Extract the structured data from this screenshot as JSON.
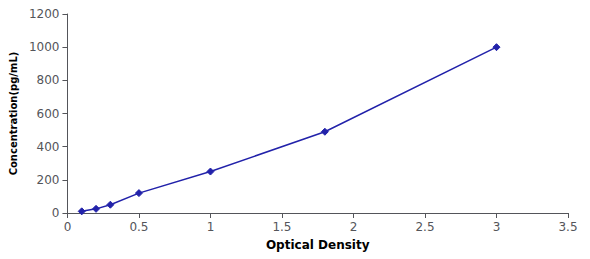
{
  "chart_data": {
    "type": "line",
    "xlabel": "Optical Density",
    "ylabel": "Concentration(pg/mL)",
    "x": [
      0.1,
      0.2,
      0.3,
      0.5,
      1.0,
      1.8,
      3.0
    ],
    "values": [
      10,
      25,
      50,
      120,
      250,
      490,
      1000
    ],
    "color": "#2222AA",
    "marker": "diamond",
    "xlim": [
      0,
      3.5
    ],
    "ylim": [
      0,
      1200
    ],
    "xticks": [
      0,
      0.5,
      1,
      1.5,
      2,
      2.5,
      3,
      3.5
    ],
    "yticks": [
      0,
      200,
      400,
      600,
      800,
      1000,
      1200
    ],
    "grid": false
  }
}
